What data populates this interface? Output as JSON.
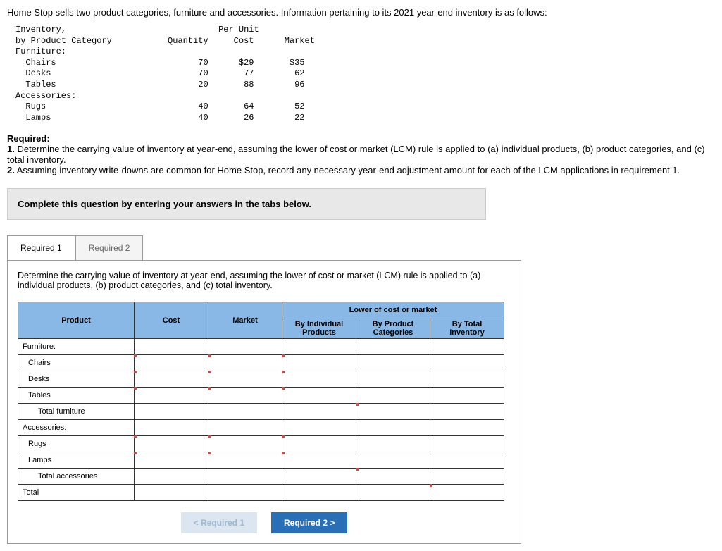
{
  "intro": "Home Stop sells two product categories, furniture and accessories. Information pertaining to its 2021 year-end inventory is as follows:",
  "mono": {
    "h1": "Inventory,",
    "h2": "by Product Category",
    "colQty": "Quantity",
    "colPer": "Per Unit",
    "colCost": "Cost",
    "colMkt": "Market",
    "furn": "Furniture:",
    "chairs": "Chairs",
    "chairsQ": "70",
    "chairsC": "$29",
    "chairsM": "$35",
    "desks": "Desks",
    "desksQ": "70",
    "desksC": "77",
    "desksM": "62",
    "tables": "Tables",
    "tablesQ": "20",
    "tablesC": "88",
    "tablesM": "96",
    "acc": "Accessories:",
    "rugs": "Rugs",
    "rugsQ": "40",
    "rugsC": "64",
    "rugsM": "52",
    "lamps": "Lamps",
    "lampsQ": "40",
    "lampsC": "26",
    "lampsM": "22"
  },
  "req": {
    "heading": "Required:",
    "line1a": "1.",
    "line1b": " Determine the carrying value of inventory at year-end, assuming the lower of cost or market (LCM) rule is applied to (a) individual products, (b) product categories, and (c) total inventory.",
    "line2a": "2.",
    "line2b": " Assuming inventory write-downs are common for Home Stop, record any necessary year-end adjustment amount for each of the LCM applications in requirement 1."
  },
  "instructionBox": "Complete this question by entering your answers in the tabs below.",
  "tabs": {
    "t1": "Required 1",
    "t2": "Required 2"
  },
  "tabDesc": "Determine the carrying value of inventory at year-end, assuming the lower of cost or market (LCM) rule is applied to (a) individual products, (b) product categories, and (c) total inventory.",
  "answerHeaders": {
    "product": "Product",
    "cost": "Cost",
    "market": "Market",
    "lcmGroup": "Lower of cost or market",
    "byInd": "By Individual Products",
    "byCat": "By Product Categories",
    "byTot": "By Total Inventory"
  },
  "rows": {
    "furn": "Furniture:",
    "chairs": "Chairs",
    "desks": "Desks",
    "tables": "Tables",
    "totFurn": "Total furniture",
    "acc": "Accessories:",
    "rugs": "Rugs",
    "lamps": "Lamps",
    "totAcc": "Total accessories",
    "total": "Total"
  },
  "nav": {
    "prev": "<  Required 1",
    "next": "Required 2  >"
  }
}
